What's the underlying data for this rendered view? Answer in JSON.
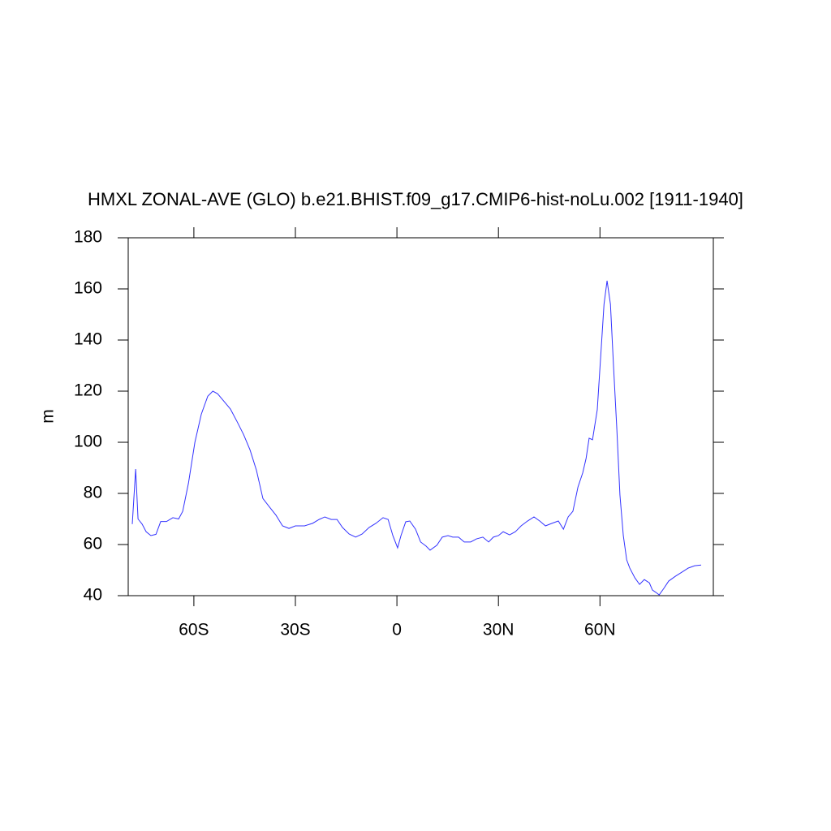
{
  "chart_data": {
    "type": "line",
    "title": "HMXL ZONAL-AVE (GLO) b.e21.BHIST.f09_g17.CMIP6-hist-noLu.002 [1911-1940]",
    "y_label": "m",
    "xlim": [
      -79.4,
      93.5
    ],
    "ylim": [
      40,
      180
    ],
    "xticks": [
      {
        "value": -60,
        "label": "60S"
      },
      {
        "value": -30,
        "label": "30S"
      },
      0,
      {
        "value": 30,
        "label": "30N"
      },
      {
        "value": 60,
        "label": "60N"
      }
    ],
    "yticks": [
      40,
      60,
      80,
      100,
      120,
      140,
      160,
      180
    ],
    "grid": false,
    "x": [
      -78.2,
      -77.2,
      -76.5,
      -75.3,
      -74.1,
      -72.7,
      -71.2,
      -69.8,
      -68.1,
      -66.2,
      -64.5,
      -63.3,
      -61.6,
      -59.7,
      -57.8,
      -55.9,
      -54.4,
      -53.0,
      -51.1,
      -49.2,
      -47.2,
      -45.3,
      -43.4,
      -41.5,
      -39.6,
      -37.6,
      -35.7,
      -33.8,
      -31.9,
      -30.0,
      -27.3,
      -24.9,
      -23.0,
      -21.3,
      -19.4,
      -17.7,
      -16.1,
      -14.1,
      -12.2,
      -10.3,
      -8.2,
      -6.2,
      -4.1,
      -2.6,
      -1.2,
      0.2,
      1.2,
      2.6,
      3.8,
      5.5,
      7.0,
      8.6,
      9.8,
      11.8,
      13.4,
      15.1,
      16.5,
      18.2,
      19.9,
      21.8,
      23.5,
      25.4,
      27.1,
      28.5,
      30.0,
      31.4,
      33.3,
      35.0,
      36.7,
      38.6,
      40.5,
      42.2,
      43.9,
      45.8,
      47.7,
      49.2,
      50.6,
      52.0,
      53.5,
      54.9,
      55.9,
      56.8,
      57.8,
      59.2,
      60.2,
      61.2,
      62.1,
      63.1,
      64.0,
      65.0,
      65.9,
      66.9,
      67.9,
      68.8,
      70.3,
      71.7,
      73.1,
      74.6,
      75.5,
      76.5,
      77.5,
      78.9,
      80.3,
      82.3,
      84.2,
      86.1,
      88.0,
      89.9
    ],
    "series": [
      {
        "name": "HMXL",
        "color": "#3333ff",
        "values": [
          68,
          89.5,
          70,
          68,
          65,
          63.5,
          64,
          69,
          69,
          70.5,
          70,
          73,
          84,
          100,
          111,
          118,
          120,
          119,
          116,
          113,
          108,
          103,
          97,
          89,
          78,
          74.6,
          71.4,
          67.3,
          66.3,
          67.3,
          67.3,
          68.3,
          69.8,
          70.8,
          69.8,
          69.8,
          66.7,
          64.1,
          62.9,
          64.1,
          66.7,
          68.3,
          70.5,
          69.8,
          63.5,
          58.7,
          63.5,
          68.9,
          69.2,
          66,
          61,
          59.4,
          57.8,
          59.7,
          62.9,
          63.5,
          62.9,
          62.9,
          61,
          61,
          62.2,
          62.9,
          61,
          62.9,
          63.5,
          65,
          63.8,
          65,
          67.3,
          69.2,
          70.8,
          69.2,
          67.3,
          68.3,
          69.2,
          66,
          70.8,
          73,
          82.5,
          88,
          93.7,
          101.6,
          101,
          112.7,
          133.3,
          154,
          163.2,
          154,
          130,
          104.8,
          79.4,
          63.5,
          54,
          50.8,
          47,
          44.4,
          46.3,
          45,
          42.2,
          41.3,
          40.3,
          42.9,
          45.7,
          47.6,
          49.2,
          50.8,
          51.7,
          52
        ]
      }
    ]
  }
}
